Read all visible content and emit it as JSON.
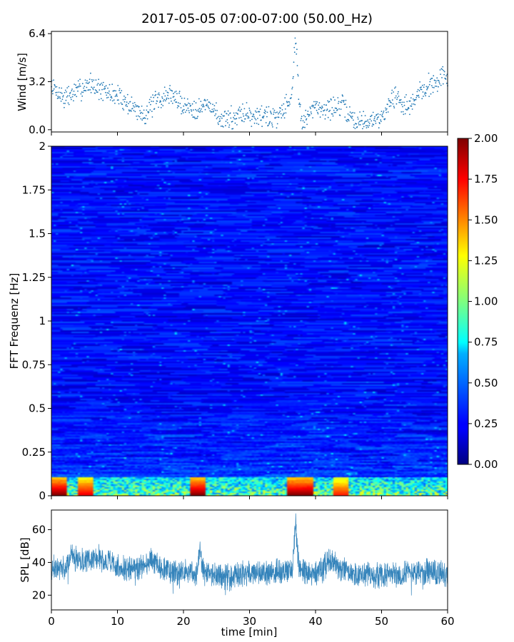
{
  "title": "2017-05-05 07:00-07:00 (50.00_Hz)",
  "colors": {
    "wind": "#1f77b4",
    "spl": "#1f77b4",
    "axis": "#000000"
  },
  "chart_data": [
    {
      "id": "wind",
      "type": "scatter",
      "xlabel": "",
      "ylabel": "Wind [m/s]",
      "xlim": [
        0,
        60
      ],
      "ylim": [
        -0.15,
        6.55
      ],
      "yticks": [
        "0.0",
        "3.2",
        "6.4"
      ],
      "ytick_values": [
        0.0,
        3.2,
        6.4
      ],
      "grid": false,
      "series": [
        {
          "x": [
            0,
            2,
            4,
            6,
            8,
            10,
            12,
            14,
            16,
            18,
            20,
            22,
            24,
            26,
            28,
            30,
            32,
            34,
            36,
            36.5,
            37,
            37.5,
            38,
            40,
            42,
            44,
            46,
            48,
            50,
            52,
            54,
            56,
            58,
            60
          ],
          "y": [
            2.9,
            2.1,
            2.6,
            3.1,
            2.5,
            2.3,
            1.6,
            1.0,
            1.9,
            2.4,
            1.6,
            1.4,
            1.7,
            0.4,
            1.0,
            1.1,
            0.9,
            0.8,
            1.9,
            3.0,
            6.3,
            2.0,
            0.4,
            1.5,
            1.4,
            1.6,
            0.5,
            0.6,
            0.8,
            2.3,
            1.4,
            2.6,
            3.2,
            3.7
          ]
        }
      ]
    },
    {
      "id": "spectrogram",
      "type": "heatmap",
      "xlabel": "",
      "ylabel": "FFT Frequenz [Hz]",
      "xlim": [
        0,
        60
      ],
      "ylim": [
        0,
        2
      ],
      "yticks": [
        "0",
        "0.25",
        "0.5",
        "0.75",
        "1",
        "1.25",
        "1.5",
        "1.75",
        "2"
      ],
      "ytick_values": [
        0,
        0.25,
        0.5,
        0.75,
        1,
        1.25,
        1.5,
        1.75,
        2
      ],
      "colormap": "jet",
      "colorbar": {
        "range": [
          0,
          2
        ],
        "ticks": [
          "0.00",
          "0.25",
          "0.50",
          "0.75",
          "1.00",
          "1.25",
          "1.50",
          "1.75",
          "2.00"
        ],
        "tick_values": [
          0,
          0.25,
          0.5,
          0.75,
          1.0,
          1.25,
          1.5,
          1.75,
          2.0
        ]
      },
      "low_frequency_band_peaks": [
        {
          "x": 1,
          "value": 2.0
        },
        {
          "x": 5,
          "value": 1.8
        },
        {
          "x": 22,
          "value": 2.0
        },
        {
          "x": 37,
          "value": 2.0
        },
        {
          "x": 38.5,
          "value": 2.0
        },
        {
          "x": 44,
          "value": 1.7
        }
      ]
    },
    {
      "id": "spl",
      "type": "line",
      "xlabel": "time [min]",
      "ylabel": "SPL [dB]",
      "xlim": [
        0,
        60
      ],
      "ylim": [
        11,
        72
      ],
      "xticks": [
        "0",
        "10",
        "20",
        "30",
        "40",
        "50",
        "60"
      ],
      "xtick_values": [
        0,
        10,
        20,
        30,
        40,
        50,
        60
      ],
      "yticks": [
        "20",
        "40",
        "60"
      ],
      "ytick_values": [
        20,
        40,
        60
      ],
      "grid": false,
      "series": [
        {
          "x": [
            0,
            2,
            3,
            5,
            7,
            9,
            10,
            12,
            14,
            15,
            17,
            19,
            20,
            22,
            22.5,
            23,
            25,
            27,
            29,
            31,
            33,
            35,
            36.5,
            37,
            37.5,
            39,
            41,
            42,
            44,
            46,
            48,
            50,
            52,
            54,
            56,
            58,
            60
          ],
          "y": [
            36,
            38,
            44,
            41,
            43,
            40,
            36,
            37,
            37,
            42,
            36,
            34,
            34,
            33,
            50,
            34,
            33,
            31,
            33,
            34,
            33,
            35,
            36,
            63,
            36,
            33,
            35,
            42,
            36,
            32,
            33,
            32,
            33,
            33,
            34,
            34,
            33
          ]
        }
      ]
    }
  ]
}
